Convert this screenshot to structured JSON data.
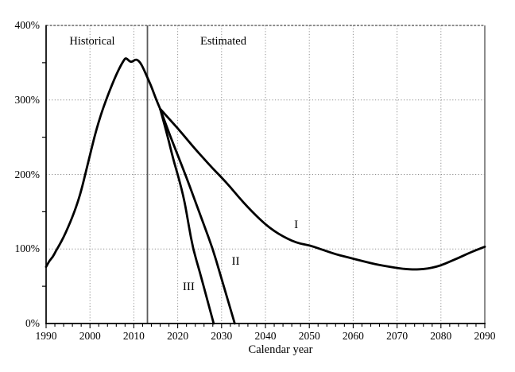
{
  "chart_data": {
    "type": "line",
    "title": "",
    "xlabel": "Calendar year",
    "ylabel": "",
    "x_min": 1990,
    "x_max": 2090,
    "y_min_pct": 0,
    "y_max_pct": 400,
    "x_major_ticks": [
      1990,
      2000,
      2010,
      2020,
      2030,
      2040,
      2050,
      2060,
      2070,
      2080,
      2090
    ],
    "x_minor_tick_step_years": 2,
    "y_major_ticks_pct": [
      0,
      100,
      200,
      300,
      400
    ],
    "y_minor_ticks_pct": [
      50,
      150,
      250,
      350
    ],
    "y_tick_suffix": "%",
    "grid_style": "dotted",
    "legend_position": "none",
    "separator_year": 2013.1,
    "region_labels": [
      {
        "text": "Historical",
        "year": 2000.5,
        "pct": 378
      },
      {
        "text": "Estimated",
        "year": 2030.4,
        "pct": 378
      }
    ],
    "series_labels": [
      {
        "text": "I",
        "year": 2047.0,
        "pct": 131.5
      },
      {
        "text": "II",
        "year": 2033.2,
        "pct": 82.5
      },
      {
        "text": "III",
        "year": 2022.5,
        "pct": 48.5
      }
    ],
    "series": [
      {
        "name": "Historical",
        "points": [
          [
            1990,
            76
          ],
          [
            1990.7,
            84
          ],
          [
            1991.5,
            89
          ],
          [
            1992.2,
            97
          ],
          [
            1993,
            105
          ],
          [
            1994,
            116
          ],
          [
            1995,
            129
          ],
          [
            1996,
            143
          ],
          [
            1997,
            159
          ],
          [
            1998,
            178
          ],
          [
            1999,
            202
          ],
          [
            2000,
            226
          ],
          [
            2001,
            250
          ],
          [
            2002,
            271
          ],
          [
            2003,
            289
          ],
          [
            2004,
            305
          ],
          [
            2005,
            320
          ],
          [
            2006,
            334
          ],
          [
            2007,
            346
          ],
          [
            2007.8,
            354
          ],
          [
            2008.1,
            356
          ],
          [
            2008.5,
            355
          ],
          [
            2009,
            352
          ],
          [
            2009.4,
            351
          ],
          [
            2009.8,
            352
          ],
          [
            2010.3,
            354
          ],
          [
            2010.8,
            354
          ],
          [
            2011.5,
            350
          ],
          [
            2012.2,
            342
          ],
          [
            2013.1,
            330
          ],
          [
            2014,
            318
          ],
          [
            2015,
            302
          ],
          [
            2016,
            288
          ]
        ]
      },
      {
        "name": "Alternative I",
        "points": [
          [
            2016,
            288
          ],
          [
            2018,
            275
          ],
          [
            2020,
            262
          ],
          [
            2022,
            248
          ],
          [
            2024,
            234
          ],
          [
            2026,
            221
          ],
          [
            2028,
            208
          ],
          [
            2030,
            196
          ],
          [
            2032,
            183
          ],
          [
            2034,
            169
          ],
          [
            2036,
            156
          ],
          [
            2038,
            144
          ],
          [
            2040,
            133
          ],
          [
            2042,
            124
          ],
          [
            2044,
            117
          ],
          [
            2046,
            111
          ],
          [
            2048,
            107
          ],
          [
            2050,
            105
          ],
          [
            2052,
            101
          ],
          [
            2054,
            97
          ],
          [
            2056,
            93
          ],
          [
            2058,
            90
          ],
          [
            2060,
            87
          ],
          [
            2062,
            84
          ],
          [
            2064,
            81
          ],
          [
            2066,
            78.5
          ],
          [
            2068,
            76.5
          ],
          [
            2070,
            74.5
          ],
          [
            2072,
            73
          ],
          [
            2074,
            72.5
          ],
          [
            2076,
            73
          ],
          [
            2078,
            74.8
          ],
          [
            2080,
            78
          ],
          [
            2082,
            83
          ],
          [
            2084,
            88
          ],
          [
            2086,
            93.5
          ],
          [
            2088,
            98.5
          ],
          [
            2090,
            103
          ]
        ]
      },
      {
        "name": "Alternative II",
        "points": [
          [
            2016,
            288
          ],
          [
            2018,
            256
          ],
          [
            2020,
            226
          ],
          [
            2022,
            196
          ],
          [
            2024,
            164
          ],
          [
            2026,
            132
          ],
          [
            2028,
            100
          ],
          [
            2029.5,
            70
          ],
          [
            2031,
            40
          ],
          [
            2033,
            0
          ]
        ]
      },
      {
        "name": "Alternative III",
        "points": [
          [
            2016,
            288
          ],
          [
            2017.5,
            256
          ],
          [
            2019,
            220
          ],
          [
            2020.2,
            196
          ],
          [
            2021.5,
            166
          ],
          [
            2022.5,
            132
          ],
          [
            2023.5,
            100
          ],
          [
            2025,
            70
          ],
          [
            2026.5,
            37
          ],
          [
            2028.2,
            0
          ]
        ]
      }
    ],
    "colors": {
      "curve": "#000000",
      "grid": "#8f8f8f",
      "top_frame": "#4a4a4a",
      "right_frame": "#808080",
      "separator": "#5a5a5a",
      "axis": "#000000",
      "background": "#ffffff",
      "text": "#000000"
    }
  }
}
